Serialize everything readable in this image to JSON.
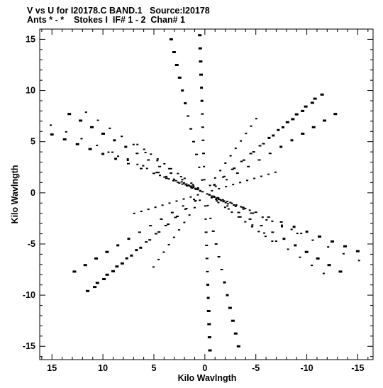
{
  "header": {
    "line1": "V vs U for I20178.C BAND.1   Source:I20178",
    "line2": "Ants * - *    Stokes I  IF# 1 - 2  Chan# 1"
  },
  "chart_data": {
    "type": "scatter",
    "title": "V vs U for I20178.C BAND.1   Source:I20178",
    "subtitle": "Ants * - *    Stokes I  IF# 1 - 2  Chan# 1",
    "xlabel": "Kilo Wavlngth",
    "ylabel": "Kilo Wavlngth",
    "xlim": [
      16.2,
      -16.5
    ],
    "ylim": [
      -16.3,
      16.0
    ],
    "x_reversed": true,
    "xticks": [
      15,
      10,
      5,
      0,
      -5,
      -10,
      -15
    ],
    "yticks": [
      -15,
      -10,
      -5,
      0,
      5,
      10,
      15
    ],
    "xtick_labels": [
      "15",
      "10",
      "5",
      "0",
      "-5",
      "-10",
      "-15"
    ],
    "ytick_labels": [
      "-15",
      "-10",
      "-5",
      "0",
      "5",
      "10",
      "15"
    ],
    "grid": false,
    "marker_color": "#000000",
    "pattern": "six-pointed star uv-coverage; points are conjugate-symmetric about the origin",
    "baselines": [
      {
        "u": 0.7,
        "v": 0.27
      },
      {
        "u": 1.5,
        "v": 0.63
      },
      {
        "u": 2.4,
        "v": 1.05
      },
      {
        "u": -0.36,
        "v": -0.17
      },
      {
        "u": 1.05,
        "v": 0.75
      },
      {
        "u": 1.1,
        "v": -0.32
      },
      {
        "u": 1.85,
        "v": 1.25
      },
      {
        "u": 0.8,
        "v": -1.15
      }
    ],
    "tracks": [
      {
        "u": 0.5,
        "v": 15.4
      },
      {
        "u": 13.3,
        "v": 7.7
      },
      {
        "u": 12.8,
        "v": -7.7
      },
      {
        "u": -0.5,
        "v": -15.4
      },
      {
        "u": -13.3,
        "v": -7.7
      },
      {
        "u": -12.8,
        "v": 7.7
      },
      {
        "u": -10.8,
        "v": 9.2
      },
      {
        "u": 10.8,
        "v": -9.2
      },
      {
        "u": -15.0,
        "v": -5.7
      },
      {
        "u": 15.0,
        "v": 5.7
      },
      {
        "u": 11.5,
        "v": -9.6
      },
      {
        "u": -11.5,
        "v": 9.6
      },
      {
        "u": -3.3,
        "v": -15.0
      },
      {
        "u": 3.3,
        "v": 15.0
      }
    ]
  }
}
